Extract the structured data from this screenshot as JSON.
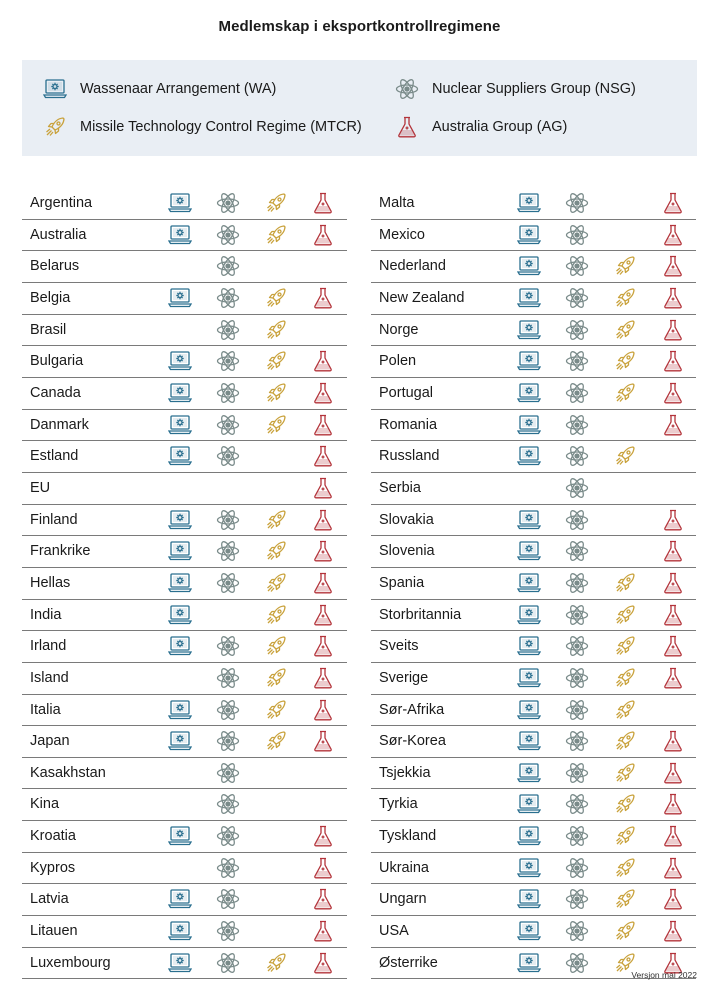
{
  "title": "Medlemskap i eksportkontrollregimene",
  "legend": {
    "wa": "Wassenaar Arrangement (WA)",
    "nsg": "Nuclear Suppliers Group (NSG)",
    "mtcr": "Missile Technology Control Regime (MTCR)",
    "ag": "Australia Group (AG)"
  },
  "colors": {
    "wa": "#2a6f8f",
    "nsg": "#7a8b8a",
    "mtcr": "#c9a23c",
    "ag": "#b3333a"
  },
  "icons": {
    "wa": "laptop-gear-icon",
    "nsg": "atom-icon",
    "mtcr": "rocket-icon",
    "ag": "flask-icon"
  },
  "countries_left": [
    {
      "name": "Argentina",
      "wa": true,
      "nsg": true,
      "mtcr": true,
      "ag": true
    },
    {
      "name": "Australia",
      "wa": true,
      "nsg": true,
      "mtcr": true,
      "ag": true
    },
    {
      "name": "Belarus",
      "wa": false,
      "nsg": true,
      "mtcr": false,
      "ag": false
    },
    {
      "name": "Belgia",
      "wa": true,
      "nsg": true,
      "mtcr": true,
      "ag": true
    },
    {
      "name": "Brasil",
      "wa": false,
      "nsg": true,
      "mtcr": true,
      "ag": false
    },
    {
      "name": "Bulgaria",
      "wa": true,
      "nsg": true,
      "mtcr": true,
      "ag": true
    },
    {
      "name": "Canada",
      "wa": true,
      "nsg": true,
      "mtcr": true,
      "ag": true
    },
    {
      "name": "Danmark",
      "wa": true,
      "nsg": true,
      "mtcr": true,
      "ag": true
    },
    {
      "name": "Estland",
      "wa": true,
      "nsg": true,
      "mtcr": false,
      "ag": true
    },
    {
      "name": "EU",
      "wa": false,
      "nsg": false,
      "mtcr": false,
      "ag": true
    },
    {
      "name": "Finland",
      "wa": true,
      "nsg": true,
      "mtcr": true,
      "ag": true
    },
    {
      "name": "Frankrike",
      "wa": true,
      "nsg": true,
      "mtcr": true,
      "ag": true
    },
    {
      "name": "Hellas",
      "wa": true,
      "nsg": true,
      "mtcr": true,
      "ag": true
    },
    {
      "name": "India",
      "wa": true,
      "nsg": false,
      "mtcr": true,
      "ag": true
    },
    {
      "name": "Irland",
      "wa": true,
      "nsg": true,
      "mtcr": true,
      "ag": true
    },
    {
      "name": "Island",
      "wa": false,
      "nsg": true,
      "mtcr": true,
      "ag": true
    },
    {
      "name": "Italia",
      "wa": true,
      "nsg": true,
      "mtcr": true,
      "ag": true
    },
    {
      "name": "Japan",
      "wa": true,
      "nsg": true,
      "mtcr": true,
      "ag": true
    },
    {
      "name": "Kasakhstan",
      "wa": false,
      "nsg": true,
      "mtcr": false,
      "ag": false
    },
    {
      "name": "Kina",
      "wa": false,
      "nsg": true,
      "mtcr": false,
      "ag": false
    },
    {
      "name": "Kroatia",
      "wa": true,
      "nsg": true,
      "mtcr": false,
      "ag": true
    },
    {
      "name": "Kypros",
      "wa": false,
      "nsg": true,
      "mtcr": false,
      "ag": true
    },
    {
      "name": "Latvia",
      "wa": true,
      "nsg": true,
      "mtcr": false,
      "ag": true
    },
    {
      "name": "Litauen",
      "wa": true,
      "nsg": true,
      "mtcr": false,
      "ag": true
    },
    {
      "name": "Luxembourg",
      "wa": true,
      "nsg": true,
      "mtcr": true,
      "ag": true
    }
  ],
  "countries_right": [
    {
      "name": "Malta",
      "wa": true,
      "nsg": true,
      "mtcr": false,
      "ag": true
    },
    {
      "name": "Mexico",
      "wa": true,
      "nsg": true,
      "mtcr": false,
      "ag": true
    },
    {
      "name": "Nederland",
      "wa": true,
      "nsg": true,
      "mtcr": true,
      "ag": true
    },
    {
      "name": "New Zealand",
      "wa": true,
      "nsg": true,
      "mtcr": true,
      "ag": true
    },
    {
      "name": "Norge",
      "wa": true,
      "nsg": true,
      "mtcr": true,
      "ag": true
    },
    {
      "name": "Polen",
      "wa": true,
      "nsg": true,
      "mtcr": true,
      "ag": true
    },
    {
      "name": "Portugal",
      "wa": true,
      "nsg": true,
      "mtcr": true,
      "ag": true
    },
    {
      "name": "Romania",
      "wa": true,
      "nsg": true,
      "mtcr": false,
      "ag": true
    },
    {
      "name": "Russland",
      "wa": true,
      "nsg": true,
      "mtcr": true,
      "ag": false
    },
    {
      "name": "Serbia",
      "wa": false,
      "nsg": true,
      "mtcr": false,
      "ag": false
    },
    {
      "name": "Slovakia",
      "wa": true,
      "nsg": true,
      "mtcr": false,
      "ag": true
    },
    {
      "name": "Slovenia",
      "wa": true,
      "nsg": true,
      "mtcr": false,
      "ag": true
    },
    {
      "name": "Spania",
      "wa": true,
      "nsg": true,
      "mtcr": true,
      "ag": true
    },
    {
      "name": "Storbritannia",
      "wa": true,
      "nsg": true,
      "mtcr": true,
      "ag": true
    },
    {
      "name": "Sveits",
      "wa": true,
      "nsg": true,
      "mtcr": true,
      "ag": true
    },
    {
      "name": "Sverige",
      "wa": true,
      "nsg": true,
      "mtcr": true,
      "ag": true
    },
    {
      "name": "Sør-Afrika",
      "wa": true,
      "nsg": true,
      "mtcr": true,
      "ag": false
    },
    {
      "name": "Sør-Korea",
      "wa": true,
      "nsg": true,
      "mtcr": true,
      "ag": true
    },
    {
      "name": "Tsjekkia",
      "wa": true,
      "nsg": true,
      "mtcr": true,
      "ag": true
    },
    {
      "name": "Tyrkia",
      "wa": true,
      "nsg": true,
      "mtcr": true,
      "ag": true
    },
    {
      "name": "Tyskland",
      "wa": true,
      "nsg": true,
      "mtcr": true,
      "ag": true
    },
    {
      "name": "Ukraina",
      "wa": true,
      "nsg": true,
      "mtcr": true,
      "ag": true
    },
    {
      "name": "Ungarn",
      "wa": true,
      "nsg": true,
      "mtcr": true,
      "ag": true
    },
    {
      "name": "USA",
      "wa": true,
      "nsg": true,
      "mtcr": true,
      "ag": true
    },
    {
      "name": "Østerrike",
      "wa": true,
      "nsg": true,
      "mtcr": true,
      "ag": true
    }
  ],
  "version": "Versjon mai 2022"
}
